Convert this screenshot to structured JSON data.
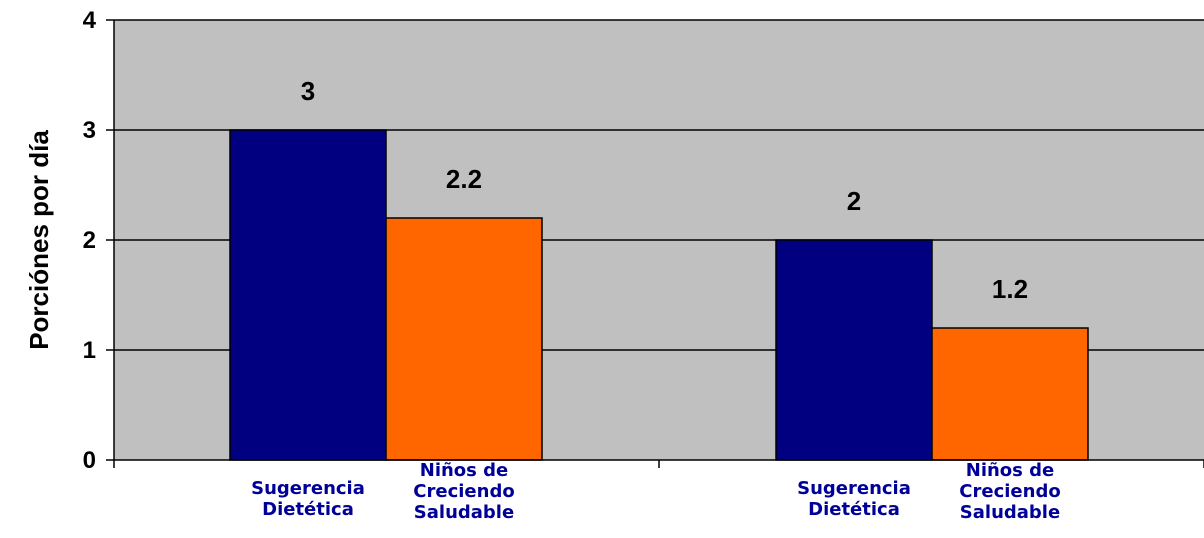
{
  "chart_data": {
    "type": "bar",
    "ylabel": "Porciónes por día",
    "ylim": [
      0,
      4
    ],
    "yticks": [
      0,
      1,
      2,
      3,
      4
    ],
    "grid": true,
    "colors": {
      "plot_bg": "#c0c0c0",
      "series_1": "#000080",
      "series_2": "#ff6600",
      "category_text": "#000099"
    },
    "groups": [
      {
        "bars": [
          {
            "label": "Sugerencia Dietética",
            "value": 3,
            "value_label": "3",
            "series": 1
          },
          {
            "label": "Niños de Creciendo Saludable",
            "value": 2.2,
            "value_label": "2.2",
            "series": 2
          }
        ]
      },
      {
        "bars": [
          {
            "label": "Sugerencia Dietética",
            "value": 2,
            "value_label": "2",
            "series": 1
          },
          {
            "label": "Niños de Creciendo Saludable",
            "value": 1.2,
            "value_label": "1.2",
            "series": 2
          }
        ]
      }
    ]
  }
}
